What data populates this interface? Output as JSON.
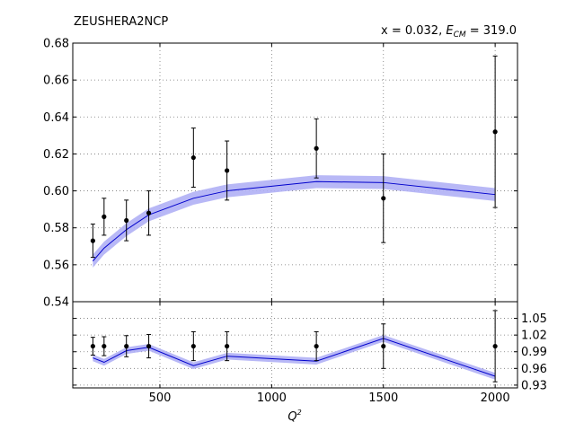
{
  "chart_data": [
    {
      "type": "line",
      "title": "ZEUSHERA2NCP",
      "kinematics_label": "x = 0.032, E_CM = 319.0",
      "xlabel": "",
      "ylabel": "",
      "xlim": [
        110,
        2100
      ],
      "ylim": [
        0.54,
        0.68
      ],
      "yticks": [
        "0.54",
        "0.56",
        "0.58",
        "0.60",
        "0.62",
        "0.64",
        "0.66",
        "0.68"
      ],
      "xticks": [
        500,
        1000,
        1500,
        2000
      ],
      "grid": true,
      "band_color": "#b0b0f5",
      "line_color": "#0000cc",
      "data_points": {
        "x": [
          200,
          250,
          350,
          450,
          650,
          800,
          1200,
          1500,
          2000
        ],
        "y": [
          0.573,
          0.586,
          0.584,
          0.588,
          0.618,
          0.611,
          0.623,
          0.596,
          0.632
        ],
        "err": [
          0.009,
          0.01,
          0.011,
          0.012,
          0.016,
          0.016,
          0.016,
          0.024,
          0.041
        ]
      },
      "theory": {
        "x": [
          200,
          250,
          350,
          450,
          650,
          800,
          1200,
          1500,
          2000
        ],
        "y": [
          0.562,
          0.569,
          0.579,
          0.587,
          0.596,
          0.6,
          0.605,
          0.6045,
          0.598
        ],
        "band": [
          0.0035,
          0.0035,
          0.0035,
          0.0035,
          0.0035,
          0.0035,
          0.0035,
          0.0035,
          0.0035
        ]
      }
    },
    {
      "type": "line",
      "title": "",
      "xlabel": "Q²",
      "ylabel": "",
      "xlim": [
        110,
        2100
      ],
      "ylim": [
        0.925,
        1.08
      ],
      "yticks": [
        "0.93",
        "0.96",
        "0.99",
        "1.02",
        "1.05"
      ],
      "xticks": [
        "500",
        "1000",
        "1500",
        "2000"
      ],
      "grid": true,
      "data_points": {
        "x": [
          200,
          250,
          350,
          450,
          650,
          800,
          1200,
          1500,
          2000
        ],
        "y": [
          1.0,
          1.0,
          1.0,
          1.0,
          1.0,
          1.0,
          1.0,
          1.0,
          1.0
        ],
        "err": [
          0.016,
          0.017,
          0.019,
          0.021,
          0.026,
          0.026,
          0.026,
          0.04,
          0.064
        ]
      },
      "ratio": {
        "x": [
          200,
          250,
          350,
          450,
          650,
          800,
          1200,
          1500,
          2000
        ],
        "y": [
          0.979,
          0.971,
          0.992,
          0.998,
          0.965,
          0.982,
          0.973,
          1.014,
          0.946
        ],
        "band": [
          0.006,
          0.006,
          0.006,
          0.006,
          0.006,
          0.006,
          0.006,
          0.006,
          0.006
        ]
      }
    }
  ]
}
